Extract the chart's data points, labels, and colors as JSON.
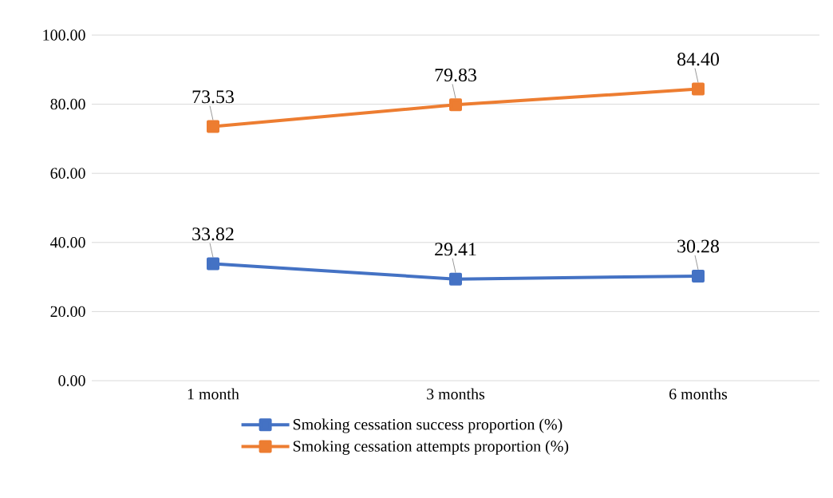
{
  "chart_data": {
    "type": "line",
    "categories": [
      "1 month",
      "3 months",
      "6 months"
    ],
    "series": [
      {
        "name": "Smoking cessation success proportion (%)",
        "color": "#4472c4",
        "values": [
          33.82,
          29.41,
          30.28
        ],
        "value_labels": [
          "33.82",
          "29.41",
          "30.28"
        ]
      },
      {
        "name": "Smoking cessation attempts proportion (%)",
        "color": "#ed7d31",
        "values": [
          73.53,
          79.83,
          84.4
        ],
        "value_labels": [
          "73.53",
          "79.83",
          "84.40"
        ]
      }
    ],
    "ylim": [
      0,
      100
    ],
    "yticks": [
      {
        "value": 0,
        "label": "0.00"
      },
      {
        "value": 20,
        "label": "20.00"
      },
      {
        "value": 40,
        "label": "40.00"
      },
      {
        "value": 60,
        "label": "60.00"
      },
      {
        "value": 80,
        "label": "80.00"
      },
      {
        "value": 100,
        "label": "100.00"
      }
    ],
    "grid": "y",
    "legend": "bottom",
    "marker": "square",
    "line_style": "solid"
  }
}
